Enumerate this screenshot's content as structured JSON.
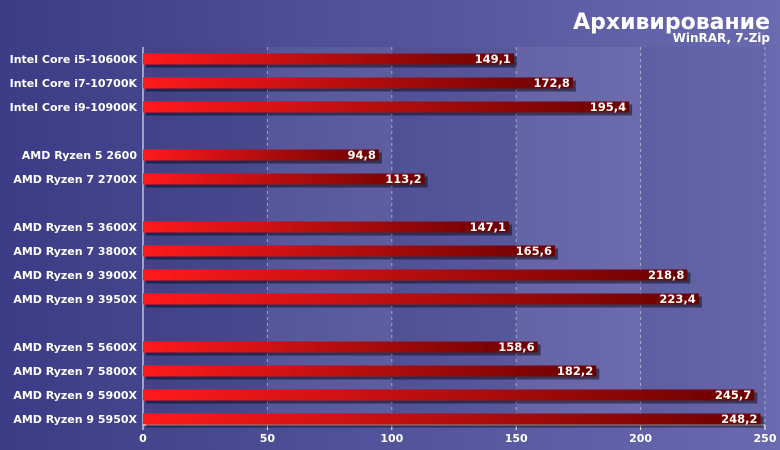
{
  "chart_data": {
    "type": "bar",
    "orientation": "horizontal",
    "title": "Архивирование",
    "subtitle": "WinRAR, 7-Zip",
    "xlim": [
      0,
      250
    ],
    "ticks": [
      0,
      50,
      100,
      150,
      200,
      250
    ],
    "grid": true,
    "categories": [
      "Intel Core i5-10600K",
      "Intel Core i7-10700K",
      "Intel Core i9-10900K",
      "AMD Ryzen 5 2600",
      "AMD Ryzen 7 2700X",
      "AMD Ryzen 5 3600X",
      "AMD Ryzen 7 3800X",
      "AMD Ryzen 9 3900X",
      "AMD Ryzen 9 3950X",
      "AMD Ryzen 5 5600X",
      "AMD Ryzen 7 5800X",
      "AMD Ryzen 9 5900X",
      "AMD Ryzen 9 5950X"
    ],
    "values": [
      149.1,
      172.8,
      195.4,
      94.8,
      113.2,
      147.1,
      165.6,
      218.8,
      223.4,
      158.6,
      182.2,
      245.7,
      248.2
    ],
    "labels": [
      "149,1",
      "172,8",
      "195,4",
      "94,8",
      "113,2",
      "147,1",
      "165,6",
      "218,8",
      "223,4",
      "158,6",
      "182,2",
      "245,7",
      "248,2"
    ],
    "groups": [
      3,
      2,
      4,
      4
    ],
    "colors": {
      "background": "#4a4a8f",
      "bar_start": "#ff1a1a",
      "bar_end": "#6a0000",
      "grid": "#c8c8e0",
      "text": "#ffffff"
    }
  }
}
